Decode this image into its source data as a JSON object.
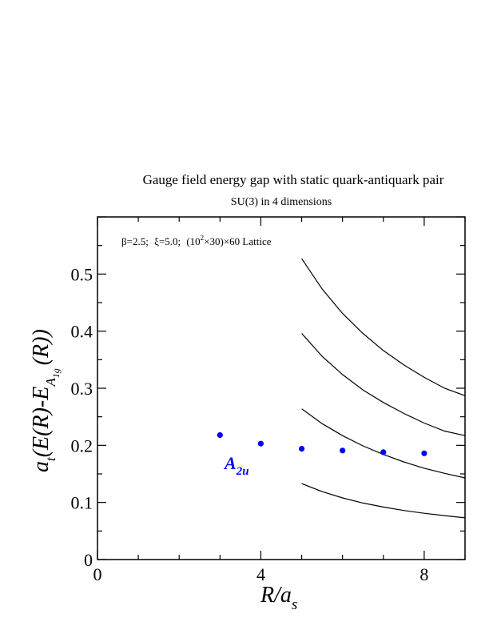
{
  "chart_data": {
    "type": "scatter",
    "title": "Gauge field energy gap with static quark-antiquark pair",
    "subtitle": "SU(3) in 4 dimensions",
    "annotation": {
      "beta": "β=2.5;",
      "xi": "ξ=5.0;",
      "lattice_open": "(10",
      "lattice_exp": "2",
      "lattice_close": "×30)×60 Lattice"
    },
    "xlabel": {
      "main": "R/a",
      "sub": "s"
    },
    "ylabel": {
      "a": "a",
      "t": "t",
      "body": "(E(R)-E",
      "A": "A",
      "sub1": "1",
      "subg": "g",
      "tail": "(R))"
    },
    "xlim": [
      0,
      9
    ],
    "ylim": [
      0,
      0.6
    ],
    "x_ticks": [
      0,
      4,
      8
    ],
    "y_ticks": [
      0,
      0.1,
      0.2,
      0.3,
      0.4,
      0.5
    ],
    "x_tick_labels": [
      "0",
      "4",
      "8"
    ],
    "y_tick_labels": [
      "0",
      "0.1",
      "0.2",
      "0.3",
      "0.4",
      "0.5"
    ],
    "grid": false,
    "series": [
      {
        "name": "A2u",
        "name_main": "A",
        "name_sub": "2u",
        "color": "#0000ff",
        "x": [
          3,
          4,
          5,
          6,
          7,
          8
        ],
        "y": [
          0.218,
          0.203,
          0.194,
          0.191,
          0.188,
          0.186
        ]
      }
    ],
    "curves": [
      {
        "color": "#000000",
        "x": [
          5,
          5.5,
          6,
          6.5,
          7,
          7.5,
          8,
          8.5,
          9
        ],
        "y": [
          0.133,
          0.119,
          0.108,
          0.099,
          0.092,
          0.086,
          0.081,
          0.077,
          0.073
        ]
      },
      {
        "color": "#000000",
        "x": [
          5,
          5.5,
          6,
          6.5,
          7,
          7.5,
          8,
          8.5,
          9
        ],
        "y": [
          0.264,
          0.238,
          0.217,
          0.199,
          0.184,
          0.171,
          0.16,
          0.151,
          0.143
        ]
      },
      {
        "color": "#000000",
        "x": [
          5,
          5.5,
          6,
          6.5,
          7,
          7.5,
          8,
          8.5,
          9
        ],
        "y": [
          0.396,
          0.356,
          0.324,
          0.297,
          0.275,
          0.256,
          0.239,
          0.225,
          0.217
        ]
      },
      {
        "color": "#000000",
        "x": [
          5,
          5.5,
          6,
          6.5,
          7,
          7.5,
          8,
          8.5,
          9
        ],
        "y": [
          0.527,
          0.474,
          0.431,
          0.396,
          0.366,
          0.341,
          0.319,
          0.3,
          0.287
        ]
      }
    ]
  }
}
